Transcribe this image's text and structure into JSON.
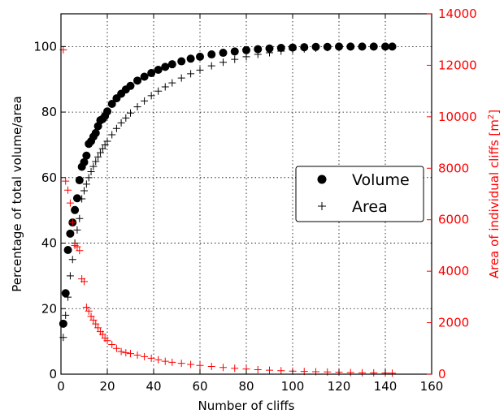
{
  "chart_data": {
    "type": "scatter",
    "title": "",
    "xlabel": "Number of cliffs",
    "ylabel_left": "Percentage of total volume/area",
    "ylabel_right": "Area of individual cliffs [m",
    "ylabel_right_sup": "2",
    "ylabel_right_end": "]",
    "xlim": [
      0,
      160
    ],
    "ylim_left": [
      0,
      110
    ],
    "ylim_right": [
      0,
      14000
    ],
    "x_ticks": [
      "0",
      "20",
      "40",
      "60",
      "80",
      "100",
      "120",
      "140",
      "160"
    ],
    "y_left_ticks": [
      "0",
      "20",
      "40",
      "60",
      "80",
      "100"
    ],
    "y_right_ticks": [
      "0",
      "2000",
      "4000",
      "6000",
      "8000",
      "10000",
      "12000",
      "14000"
    ],
    "grid": true,
    "legend_position": "center-right",
    "colors": {
      "left_axis": "#000000",
      "right_axis": "#ff0000"
    },
    "series": [
      {
        "name": "Volume",
        "marker": "circle",
        "color": "#000000",
        "axis": "left",
        "x": [
          1,
          2,
          3,
          4,
          5,
          6,
          7,
          8,
          9,
          10,
          11,
          12,
          13,
          14,
          15,
          16,
          17,
          18,
          19,
          20,
          22,
          24,
          26,
          28,
          30,
          33,
          36,
          39,
          42,
          45,
          48,
          52,
          56,
          60,
          65,
          70,
          75,
          80,
          85,
          90,
          95,
          100,
          105,
          110,
          115,
          120,
          125,
          130,
          135,
          140,
          143
        ],
        "y": [
          15.4,
          24.7,
          37.9,
          42.9,
          46.3,
          50.1,
          53.7,
          59.2,
          63.3,
          64.7,
          66.7,
          70.3,
          71.1,
          72.5,
          73.6,
          75.7,
          77.5,
          77.9,
          78.8,
          80.2,
          82.5,
          84.2,
          85.6,
          86.9,
          88.0,
          89.6,
          90.8,
          91.9,
          92.9,
          93.8,
          94.6,
          95.5,
          96.3,
          96.9,
          97.6,
          98.1,
          98.5,
          98.9,
          99.2,
          99.4,
          99.6,
          99.7,
          99.8,
          99.9,
          99.9,
          100.0,
          100.0,
          100.0,
          100.0,
          100.0,
          100.0
        ]
      },
      {
        "name": "Area",
        "marker": "plus",
        "color": "#000000",
        "axis": "left",
        "x": [
          1,
          2,
          3,
          4,
          5,
          6,
          7,
          8,
          9,
          10,
          11,
          12,
          13,
          14,
          15,
          16,
          17,
          18,
          19,
          20,
          22,
          24,
          26,
          28,
          30,
          33,
          36,
          39,
          42,
          45,
          48,
          52,
          56,
          60,
          65,
          70,
          75,
          80,
          85,
          90,
          95,
          100,
          105,
          110,
          115,
          120,
          125,
          130,
          135,
          140,
          143
        ],
        "y": [
          11.2,
          18.0,
          23.5,
          30.0,
          35.0,
          40.0,
          44.0,
          47.5,
          53.5,
          56.0,
          58.0,
          60.0,
          61.8,
          63.4,
          64.9,
          66.3,
          67.6,
          68.8,
          70.0,
          71.1,
          73.1,
          75.0,
          76.7,
          78.2,
          79.7,
          81.6,
          83.4,
          85.0,
          86.4,
          87.7,
          88.9,
          90.4,
          91.7,
          92.8,
          94.1,
          95.2,
          96.1,
          96.9,
          97.6,
          98.1,
          98.6,
          99.0,
          99.3,
          99.5,
          99.7,
          99.8,
          99.9,
          100.0,
          100.0,
          100.0,
          100.0
        ]
      },
      {
        "name": "",
        "marker": "plus",
        "color": "#ff0000",
        "axis": "right",
        "x": [
          1,
          2,
          3,
          4,
          5,
          6,
          7,
          8,
          9,
          10,
          11,
          12,
          13,
          14,
          15,
          16,
          17,
          18,
          19,
          20,
          22,
          24,
          26,
          28,
          30,
          33,
          36,
          39,
          42,
          45,
          48,
          52,
          56,
          60,
          65,
          70,
          75,
          80,
          85,
          90,
          95,
          100,
          105,
          110,
          115,
          120,
          125,
          130,
          135,
          140,
          143
        ],
        "y": [
          12600,
          7500,
          7150,
          6650,
          5900,
          5000,
          4950,
          4800,
          3700,
          3600,
          2600,
          2450,
          2250,
          2100,
          1950,
          1800,
          1650,
          1550,
          1400,
          1300,
          1150,
          1000,
          880,
          830,
          800,
          740,
          680,
          620,
          560,
          500,
          460,
          420,
          380,
          340,
          300,
          260,
          230,
          200,
          175,
          155,
          135,
          120,
          105,
          95,
          85,
          75,
          65,
          55,
          50,
          45,
          40
        ]
      }
    ]
  }
}
